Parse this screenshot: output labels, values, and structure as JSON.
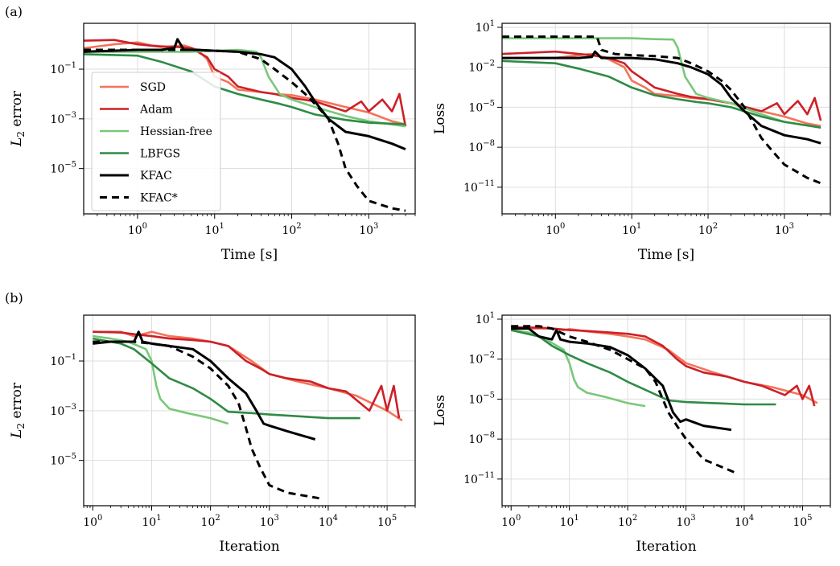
{
  "panel_labels": [
    "(a)",
    "(b)"
  ],
  "colors": {
    "SGD": "#f4735a",
    "Adam": "#cc2027",
    "Hessian-free": "#79c879",
    "LBFGS": "#2e8b45",
    "KFAC": "#000000",
    "KFAC*": "#000000"
  },
  "legend": {
    "placement": "center-left of top-left panel",
    "entries": [
      "SGD",
      "Adam",
      "Hessian-free",
      "LBFGS",
      "KFAC",
      "KFAC*"
    ]
  },
  "chart_data": [
    {
      "type": "line",
      "panel": "a-left",
      "xscale": "log",
      "yscale": "log",
      "xlabel": "Time [s]",
      "ylabel": "L_2 error",
      "xlim": [
        0.2,
        4000
      ],
      "ylim": [
        1.5e-07,
        7
      ],
      "xticks": [
        1,
        10,
        100,
        1000
      ],
      "xtick_labels": [
        "10^0",
        "10^1",
        "10^2",
        "10^3"
      ],
      "yticks": [
        1e-05,
        0.001,
        0.1
      ],
      "ytick_labels": [
        "10^-5",
        "10^-3",
        "10^-1"
      ],
      "grid": true,
      "series": [
        {
          "name": "SGD",
          "x": [
            0.2,
            0.5,
            1,
            1.5,
            2.5,
            4,
            6,
            8,
            10,
            15,
            20,
            40,
            60,
            100,
            200,
            500,
            1000,
            2000,
            3000
          ],
          "y": [
            0.7,
            1.0,
            1.2,
            0.9,
            0.8,
            0.9,
            0.6,
            0.25,
            0.05,
            0.03,
            0.015,
            0.012,
            0.01,
            0.009,
            0.006,
            0.003,
            0.0018,
            0.0008,
            0.0006
          ]
        },
        {
          "name": "Adam",
          "x": [
            0.2,
            0.5,
            1,
            2,
            3,
            5,
            8,
            10,
            15,
            20,
            40,
            60,
            100,
            200,
            500,
            800,
            1000,
            1500,
            2000,
            2500,
            3000
          ],
          "y": [
            1.4,
            1.5,
            1.0,
            0.8,
            0.8,
            0.7,
            0.3,
            0.1,
            0.05,
            0.02,
            0.012,
            0.01,
            0.007,
            0.005,
            0.002,
            0.005,
            0.002,
            0.006,
            0.002,
            0.01,
            0.0005
          ]
        },
        {
          "name": "Hessian-free",
          "x": [
            0.2,
            1,
            5,
            10,
            20,
            35,
            40,
            50,
            70,
            100,
            200,
            500,
            1000,
            3000
          ],
          "y": [
            0.5,
            0.5,
            0.5,
            0.55,
            0.6,
            0.5,
            0.3,
            0.05,
            0.01,
            0.006,
            0.003,
            0.0013,
            0.0008,
            0.0005
          ]
        },
        {
          "name": "LBFGS",
          "x": [
            0.2,
            1,
            2,
            5,
            10,
            20,
            40,
            70,
            100,
            200,
            500,
            1000,
            3000
          ],
          "y": [
            0.4,
            0.35,
            0.2,
            0.08,
            0.02,
            0.01,
            0.006,
            0.004,
            0.003,
            0.0015,
            0.0009,
            0.0007,
            0.0006
          ]
        },
        {
          "name": "KFAC",
          "x": [
            0.2,
            1,
            2,
            3,
            3.3,
            4,
            6,
            10,
            20,
            40,
            60,
            100,
            150,
            200,
            300,
            500,
            1000,
            2000,
            3000
          ],
          "y": [
            0.5,
            0.6,
            0.6,
            0.7,
            1.6,
            0.6,
            0.6,
            0.55,
            0.5,
            0.4,
            0.3,
            0.1,
            0.02,
            0.005,
            0.001,
            0.0003,
            0.0002,
            0.0001,
            6e-05
          ]
        },
        {
          "name": "KFAC*",
          "x": [
            0.2,
            1,
            2,
            5,
            10,
            20,
            40,
            60,
            100,
            150,
            200,
            300,
            400,
            500,
            700,
            1000,
            2000,
            3000
          ],
          "y": [
            0.6,
            0.6,
            0.6,
            0.6,
            0.55,
            0.5,
            0.25,
            0.1,
            0.03,
            0.01,
            0.004,
            0.001,
            0.0001,
            1e-05,
            2e-06,
            5e-07,
            2.5e-07,
            2e-07
          ]
        }
      ]
    },
    {
      "type": "line",
      "panel": "a-right",
      "xscale": "log",
      "yscale": "log",
      "xlabel": "Time [s]",
      "ylabel": "Loss",
      "xlim": [
        0.2,
        4000
      ],
      "ylim": [
        1e-13,
        20
      ],
      "xticks": [
        1,
        10,
        100,
        1000
      ],
      "xtick_labels": [
        "10^0",
        "10^1",
        "10^2",
        "10^3"
      ],
      "yticks": [
        1e-11,
        1e-08,
        1e-05,
        0.01,
        10
      ],
      "ytick_labels": [
        "10^-11",
        "10^-8",
        "10^-5",
        "10^-2",
        "10^1"
      ],
      "grid": true,
      "series": [
        {
          "name": "SGD",
          "x": [
            0.2,
            1,
            2,
            3,
            5,
            8,
            10,
            15,
            20,
            40,
            60,
            100,
            200,
            500,
            1000,
            2000,
            3000
          ],
          "y": [
            0.05,
            0.05,
            0.08,
            0.1,
            0.04,
            0.01,
            0.001,
            0.0003,
            0.0001,
            7e-05,
            5e-05,
            4e-05,
            2e-05,
            5e-06,
            2e-06,
            6e-07,
            4e-07
          ]
        },
        {
          "name": "Adam",
          "x": [
            0.2,
            1,
            2,
            3,
            5,
            8,
            10,
            15,
            20,
            40,
            60,
            100,
            200,
            500,
            800,
            1000,
            1500,
            2000,
            2500,
            3000
          ],
          "y": [
            0.1,
            0.15,
            0.1,
            0.08,
            0.05,
            0.02,
            0.005,
            0.001,
            0.0003,
            0.0001,
            6e-05,
            4e-05,
            2e-05,
            5e-06,
            2e-05,
            3e-06,
            3e-05,
            3e-06,
            5e-05,
            1e-06
          ]
        },
        {
          "name": "Hessian-free",
          "x": [
            0.2,
            1,
            5,
            10,
            20,
            35,
            40,
            50,
            70,
            100,
            200,
            500,
            1000,
            3000
          ],
          "y": [
            1.5,
            1.5,
            1.5,
            1.5,
            1.3,
            1.2,
            0.3,
            0.002,
            0.0001,
            5e-05,
            2e-05,
            3e-06,
            8e-07,
            3e-07
          ]
        },
        {
          "name": "LBFGS",
          "x": [
            0.2,
            1,
            2,
            5,
            10,
            20,
            40,
            70,
            100,
            200,
            500,
            1000,
            3000
          ],
          "y": [
            0.03,
            0.02,
            0.008,
            0.002,
            0.0003,
            8e-05,
            4e-05,
            2.5e-05,
            2e-05,
            1e-05,
            2e-06,
            8e-07,
            3e-07
          ]
        },
        {
          "name": "KFAC",
          "x": [
            0.2,
            1,
            2,
            3,
            3.3,
            4,
            6,
            10,
            20,
            40,
            60,
            100,
            150,
            200,
            300,
            500,
            1000,
            2000,
            3000
          ],
          "y": [
            0.05,
            0.05,
            0.05,
            0.06,
            0.15,
            0.05,
            0.05,
            0.05,
            0.04,
            0.02,
            0.01,
            0.003,
            0.0005,
            5e-05,
            5e-06,
            4e-07,
            8e-08,
            4e-08,
            2e-08
          ]
        },
        {
          "name": "KFAC*",
          "x": [
            0.2,
            1,
            2,
            3,
            3.5,
            4,
            6,
            10,
            20,
            40,
            60,
            100,
            150,
            200,
            300,
            400,
            500,
            700,
            1000,
            2000,
            3000
          ],
          "y": [
            2,
            2,
            2,
            2,
            2,
            0.2,
            0.1,
            0.08,
            0.07,
            0.05,
            0.02,
            0.005,
            0.001,
            0.0002,
            1e-05,
            5e-07,
            5e-08,
            5e-09,
            5e-10,
            5e-11,
            2e-11
          ]
        }
      ]
    },
    {
      "type": "line",
      "panel": "b-left",
      "xscale": "log",
      "yscale": "log",
      "xlabel": "Iteration",
      "ylabel": "L_2 error",
      "xlim": [
        0.7,
        300000
      ],
      "ylim": [
        1.5e-07,
        7
      ],
      "xticks": [
        1,
        10,
        100,
        1000,
        10000,
        100000
      ],
      "xtick_labels": [
        "10^0",
        "10^1",
        "10^2",
        "10^3",
        "10^4",
        "10^5"
      ],
      "yticks": [
        1e-05,
        0.001,
        0.1
      ],
      "ytick_labels": [
        "10^-5",
        "10^-3",
        "10^-1"
      ],
      "grid": true,
      "series": [
        {
          "name": "SGD",
          "x": [
            1,
            3,
            5,
            8,
            10,
            20,
            50,
            100,
            200,
            500,
            1000,
            3000,
            10000,
            30000,
            100000,
            180000
          ],
          "y": [
            1.5,
            1.5,
            1.0,
            1.3,
            1.5,
            1.0,
            0.8,
            0.6,
            0.4,
            0.1,
            0.03,
            0.015,
            0.008,
            0.004,
            0.001,
            0.0004
          ]
        },
        {
          "name": "Adam",
          "x": [
            1,
            3,
            5,
            10,
            20,
            50,
            100,
            200,
            400,
            700,
            1000,
            2000,
            5000,
            10000,
            20000,
            50000,
            80000,
            100000,
            130000,
            160000
          ],
          "y": [
            1.5,
            1.4,
            1.2,
            1.0,
            0.8,
            0.7,
            0.6,
            0.4,
            0.1,
            0.05,
            0.03,
            0.02,
            0.015,
            0.008,
            0.006,
            0.001,
            0.01,
            0.001,
            0.01,
            0.0005
          ]
        },
        {
          "name": "Hessian-free",
          "x": [
            1,
            2,
            4,
            8,
            10,
            12,
            14,
            20,
            40,
            100,
            200
          ],
          "y": [
            1.0,
            0.8,
            0.6,
            0.3,
            0.1,
            0.01,
            0.003,
            0.0012,
            0.0008,
            0.0005,
            0.0003
          ]
        },
        {
          "name": "LBFGS",
          "x": [
            1,
            3,
            5,
            10,
            20,
            50,
            100,
            200,
            500,
            1000,
            3000,
            10000,
            35000
          ],
          "y": [
            0.8,
            0.5,
            0.3,
            0.08,
            0.02,
            0.008,
            0.003,
            0.0009,
            0.0008,
            0.0007,
            0.0006,
            0.0005,
            0.0005
          ]
        },
        {
          "name": "KFAC",
          "x": [
            1,
            2,
            3,
            5,
            6,
            7,
            10,
            20,
            50,
            100,
            200,
            400,
            600,
            800,
            1000,
            2000,
            6000
          ],
          "y": [
            0.5,
            0.6,
            0.6,
            0.6,
            1.5,
            0.6,
            0.5,
            0.4,
            0.3,
            0.1,
            0.02,
            0.005,
            0.001,
            0.0003,
            0.00025,
            0.00015,
            7e-05
          ]
        },
        {
          "name": "KFAC*",
          "x": [
            1,
            2,
            3,
            5,
            10,
            20,
            50,
            100,
            200,
            300,
            400,
            500,
            700,
            1000,
            2000,
            7000
          ],
          "y": [
            0.6,
            0.6,
            0.6,
            0.6,
            0.5,
            0.4,
            0.15,
            0.05,
            0.01,
            0.002,
            0.0002,
            3e-05,
            5e-06,
            1e-06,
            5e-07,
            3e-07
          ]
        }
      ]
    },
    {
      "type": "line",
      "panel": "b-right",
      "xscale": "log",
      "yscale": "log",
      "xlabel": "Iteration",
      "ylabel": "Loss",
      "xlim": [
        0.7,
        300000
      ],
      "ylim": [
        1e-13,
        20
      ],
      "xticks": [
        1,
        10,
        100,
        1000,
        10000,
        100000
      ],
      "xtick_labels": [
        "10^0",
        "10^1",
        "10^2",
        "10^3",
        "10^4",
        "10^5"
      ],
      "yticks": [
        1e-11,
        1e-08,
        1e-05,
        0.01,
        10
      ],
      "ytick_labels": [
        "10^-11",
        "10^-8",
        "10^-5",
        "10^-2",
        "10^1"
      ],
      "grid": true,
      "series": [
        {
          "name": "SGD",
          "x": [
            1,
            3,
            5,
            8,
            10,
            20,
            50,
            100,
            200,
            500,
            1000,
            3000,
            10000,
            30000,
            100000,
            180000
          ],
          "y": [
            2,
            2,
            2,
            1.5,
            1.8,
            1.2,
            0.8,
            0.5,
            0.3,
            0.05,
            0.005,
            0.001,
            0.0002,
            8e-05,
            2e-05,
            5e-06
          ]
        },
        {
          "name": "Adam",
          "x": [
            1,
            3,
            5,
            10,
            20,
            50,
            100,
            200,
            400,
            700,
            1000,
            2000,
            5000,
            10000,
            20000,
            50000,
            80000,
            100000,
            130000,
            160000
          ],
          "y": [
            2.5,
            2.3,
            2,
            1.5,
            1.3,
            1,
            0.8,
            0.5,
            0.1,
            0.01,
            0.003,
            0.001,
            0.0005,
            0.0002,
            0.0001,
            2e-05,
            0.0001,
            1e-05,
            0.0001,
            3e-06
          ]
        },
        {
          "name": "Hessian-free",
          "x": [
            1,
            2,
            4,
            8,
            10,
            12,
            14,
            20,
            40,
            100,
            200
          ],
          "y": [
            1.5,
            1.0,
            0.3,
            0.05,
            0.005,
            0.0003,
            8e-05,
            3e-05,
            1.5e-05,
            5e-06,
            3e-06
          ]
        },
        {
          "name": "LBFGS",
          "x": [
            1,
            3,
            5,
            10,
            20,
            50,
            100,
            200,
            500,
            1000,
            3000,
            10000,
            35000
          ],
          "y": [
            1.5,
            0.5,
            0.1,
            0.02,
            0.005,
            0.001,
            0.0002,
            5e-05,
            8e-06,
            6e-06,
            5e-06,
            4e-06,
            4e-06
          ]
        },
        {
          "name": "KFAC",
          "x": [
            1,
            2,
            3,
            5,
            6,
            7,
            10,
            20,
            50,
            100,
            200,
            400,
            600,
            800,
            1000,
            2000,
            6000
          ],
          "y": [
            2,
            2,
            0.5,
            0.3,
            1.5,
            0.3,
            0.2,
            0.15,
            0.08,
            0.02,
            0.002,
            0.0001,
            1e-06,
            2e-07,
            3e-07,
            1e-07,
            5e-08
          ]
        },
        {
          "name": "KFAC*",
          "x": [
            1,
            2,
            3,
            5,
            10,
            20,
            50,
            100,
            200,
            300,
            400,
            500,
            700,
            1000,
            2000,
            7000
          ],
          "y": [
            3,
            3,
            3,
            2,
            0.5,
            0.2,
            0.05,
            0.01,
            0.002,
            0.0002,
            1e-05,
            1e-06,
            1e-07,
            1e-08,
            3e-10,
            3e-11
          ]
        }
      ]
    }
  ]
}
